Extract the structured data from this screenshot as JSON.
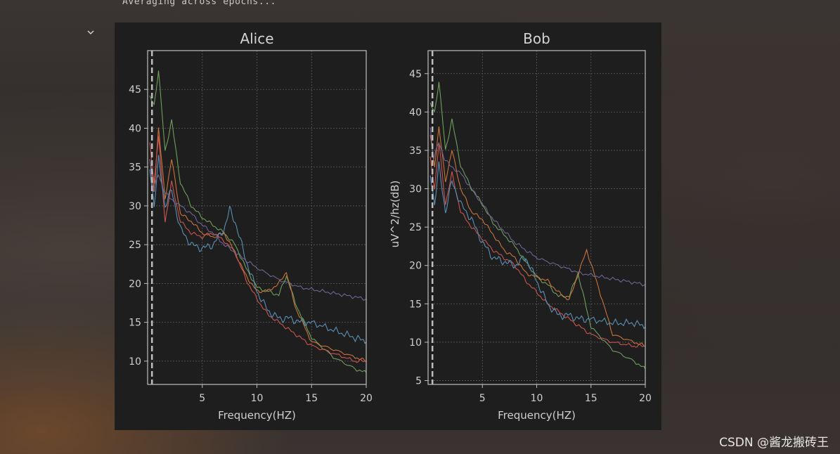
{
  "console": {
    "line": "Averaging across epochs..."
  },
  "watermark": "CSDN @酱龙搬砖王",
  "icons": {
    "collapse": "chevron-down-icon"
  },
  "colors": {
    "figure_bg": "#1e1e1e",
    "axes_bg": "#1e1e1e",
    "spine": "#bdbdbd",
    "grid": "#5a5a5a",
    "marker": "#bdbdbd",
    "series": [
      "#6e9e5c",
      "#c8733a",
      "#c9544f",
      "#5b8fb5",
      "#6f6494"
    ]
  },
  "chart_data": [
    {
      "type": "line",
      "title": "Alice",
      "xlabel": "Frequency(HZ)",
      "ylabel": "",
      "xlim": [
        0,
        20
      ],
      "ylim": [
        7,
        50
      ],
      "xticks": [
        5,
        10,
        15,
        20
      ],
      "yticks": [
        10,
        15,
        20,
        25,
        30,
        35,
        40,
        45
      ],
      "grid": true,
      "vline_x": 0.4,
      "series": [
        {
          "x": [
            0.2,
            0.6,
            1,
            1.6,
            2.2,
            3,
            4,
            5,
            6,
            7,
            8,
            9,
            10,
            11,
            12,
            12.7,
            13.5,
            15,
            17,
            19,
            20
          ],
          "y": [
            44,
            43,
            47.5,
            37,
            41,
            33,
            30,
            28.5,
            27.5,
            26.5,
            25,
            22,
            19.5,
            19,
            18.5,
            21,
            17.5,
            13,
            10.5,
            9,
            8.5
          ]
        },
        {
          "x": [
            0.2,
            0.6,
            1,
            1.6,
            2.2,
            3,
            4,
            5,
            6,
            7,
            8,
            9,
            10,
            11,
            12,
            12.7,
            13.5,
            15,
            17,
            19,
            20
          ],
          "y": [
            36,
            32,
            40,
            31,
            36,
            29,
            28,
            26.5,
            26,
            26.5,
            24,
            21,
            19,
            19,
            20,
            21.5,
            17,
            12.5,
            11.5,
            10.5,
            10
          ]
        },
        {
          "x": [
            0.2,
            0.6,
            1,
            1.6,
            2.2,
            3,
            4,
            5,
            6,
            7,
            8,
            9,
            10,
            11,
            12,
            13,
            14,
            15,
            17,
            19,
            20
          ],
          "y": [
            38,
            33,
            39,
            28,
            33,
            28,
            26.5,
            26,
            26.5,
            25.5,
            24,
            20.5,
            18,
            16,
            15,
            14,
            13,
            12,
            11,
            10,
            10
          ]
        },
        {
          "x": [
            0.2,
            0.6,
            1,
            1.6,
            2.2,
            3,
            4,
            5,
            6,
            7,
            7.5,
            8,
            9,
            10,
            11,
            12,
            13,
            14,
            15,
            17,
            19,
            20
          ],
          "y": [
            35,
            30,
            36,
            30,
            32,
            27,
            25,
            24.5,
            25,
            27,
            29.5,
            28,
            23,
            19,
            16.5,
            15.5,
            15.5,
            15,
            15,
            14,
            13,
            12.5
          ]
        },
        {
          "x": [
            0.2,
            0.5,
            1,
            1.5,
            2,
            3,
            4,
            5,
            6,
            7,
            8,
            9,
            10,
            12,
            14,
            16,
            18,
            20
          ],
          "y": [
            36,
            32,
            34,
            32,
            31,
            30,
            29,
            27.5,
            26.5,
            25,
            24,
            23,
            22,
            20.5,
            19.5,
            19,
            18.5,
            18
          ]
        }
      ]
    },
    {
      "type": "line",
      "title": "Bob",
      "xlabel": "Frequency(HZ)",
      "ylabel": "uV^2/hz(dB)",
      "xlim": [
        0,
        20
      ],
      "ylim": [
        4.5,
        48
      ],
      "xticks": [
        5,
        10,
        15,
        20
      ],
      "yticks": [
        5,
        10,
        15,
        20,
        25,
        30,
        35,
        40,
        45
      ],
      "grid": true,
      "vline_x": 0.4,
      "series": [
        {
          "x": [
            0.2,
            0.6,
            1,
            1.6,
            2.2,
            3,
            4,
            5,
            6,
            7,
            8,
            9,
            10,
            11,
            12,
            13,
            13.8,
            15,
            17,
            19,
            20
          ],
          "y": [
            41,
            40,
            44,
            35,
            39,
            33,
            30,
            28,
            25.5,
            24,
            22.5,
            20.5,
            18.5,
            17.5,
            16,
            16,
            19,
            12,
            9,
            7.5,
            6.5
          ]
        },
        {
          "x": [
            0.2,
            0.6,
            1,
            1.6,
            2.2,
            3,
            4,
            5,
            6,
            7,
            8,
            9,
            10,
            11,
            12,
            13,
            13.6,
            14.6,
            15.5,
            17,
            19,
            20
          ],
          "y": [
            37,
            33,
            38,
            31,
            35,
            30,
            27,
            26,
            24,
            22,
            21,
            19,
            18.5,
            18,
            16.5,
            15.5,
            18,
            22,
            18,
            11,
            10,
            9.5
          ]
        },
        {
          "x": [
            0.2,
            0.6,
            1,
            1.6,
            2.2,
            3,
            4,
            5,
            6,
            7,
            8,
            9,
            10,
            11,
            12,
            13,
            14,
            15,
            17,
            19,
            20
          ],
          "y": [
            34,
            30,
            36,
            28,
            32,
            27,
            25,
            23.5,
            22,
            21,
            20,
            18,
            16.5,
            15,
            14,
            13,
            12,
            11,
            10,
            9.5,
            9.5
          ]
        },
        {
          "x": [
            0.2,
            0.6,
            1,
            1.6,
            2.2,
            3,
            4,
            5,
            6,
            7,
            8,
            9,
            10,
            11,
            12,
            13,
            14,
            15,
            17,
            19,
            20
          ],
          "y": [
            32,
            28,
            33,
            27,
            31,
            28,
            26,
            23,
            21,
            20.5,
            20,
            21,
            18,
            15,
            13.5,
            13.5,
            13,
            13,
            12.5,
            12.5,
            12
          ]
        },
        {
          "x": [
            0.2,
            0.5,
            1,
            1.5,
            2,
            3,
            4,
            5,
            6,
            7,
            8,
            9,
            10,
            12,
            14,
            16,
            18,
            20
          ],
          "y": [
            38,
            34,
            36,
            34,
            33,
            32,
            30,
            28,
            26,
            24.5,
            23,
            22,
            21,
            20,
            19,
            18.5,
            18,
            17.5
          ]
        }
      ]
    }
  ]
}
